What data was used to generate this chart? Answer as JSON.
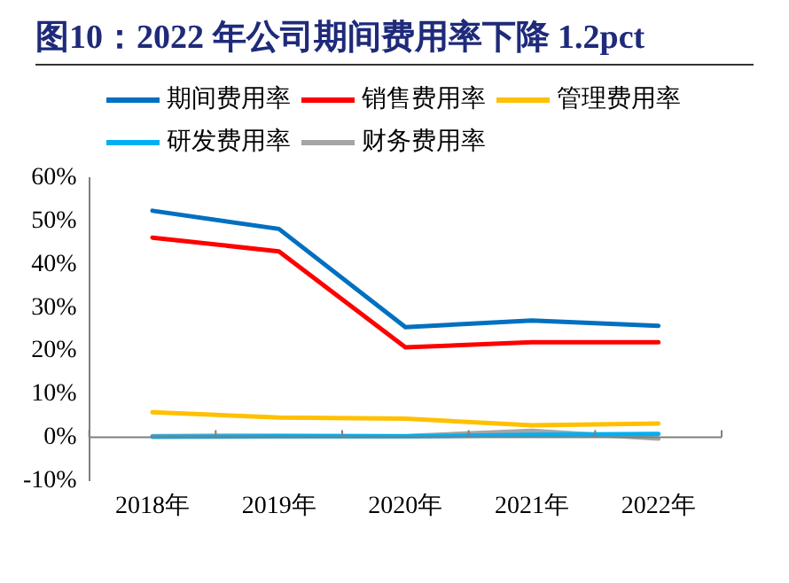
{
  "chart_data": {
    "type": "line",
    "title": "图10：2022 年公司期间费用率下降 1.2pct",
    "categories": [
      "2018年",
      "2019年",
      "2020年",
      "2021年",
      "2022年"
    ],
    "series": [
      {
        "name": "期间费用率",
        "color": "#0070c0",
        "values": [
          52.4,
          48.2,
          25.5,
          27.0,
          25.8
        ]
      },
      {
        "name": "销售费用率",
        "color": "#ff0000",
        "values": [
          46.2,
          43.0,
          20.8,
          22.0,
          22.0
        ]
      },
      {
        "name": "管理费用率",
        "color": "#ffc000",
        "values": [
          5.8,
          4.6,
          4.3,
          2.8,
          3.2
        ]
      },
      {
        "name": "研发费用率",
        "color": "#00b0f0",
        "values": [
          0.1,
          0.2,
          0.2,
          0.6,
          0.8
        ]
      },
      {
        "name": "财务费用率",
        "color": "#a5a5a5",
        "values": [
          0.3,
          0.4,
          0.3,
          1.5,
          -0.3
        ]
      }
    ],
    "ylim": [
      -10,
      60
    ],
    "yticks": [
      {
        "value": -10,
        "label": "-10%"
      },
      {
        "value": 0,
        "label": "0%"
      },
      {
        "value": 10,
        "label": "10%"
      },
      {
        "value": 20,
        "label": "20%"
      },
      {
        "value": 30,
        "label": "30%"
      },
      {
        "value": 40,
        "label": "40%"
      },
      {
        "value": 50,
        "label": "50%"
      },
      {
        "value": 60,
        "label": "60%"
      }
    ],
    "grid": false,
    "legend": "top",
    "marker": "none",
    "line_style": "solid"
  }
}
